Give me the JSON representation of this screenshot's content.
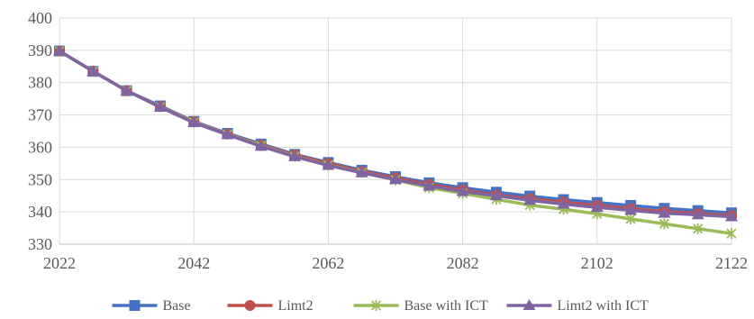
{
  "chart_data": {
    "type": "line",
    "title": "",
    "xlabel": "",
    "ylabel": "",
    "xlim": [
      2022,
      2122
    ],
    "ylim": [
      330,
      400
    ],
    "x_ticks": [
      "2022",
      "2042",
      "2062",
      "2082",
      "2102",
      "2122"
    ],
    "y_ticks": [
      "330",
      "340",
      "350",
      "360",
      "370",
      "380",
      "390",
      "400"
    ],
    "grid": "major, both axes",
    "legend_position": "bottom",
    "x": [
      2022,
      2027,
      2032,
      2037,
      2042,
      2047,
      2052,
      2057,
      2062,
      2067,
      2072,
      2077,
      2082,
      2087,
      2092,
      2097,
      2102,
      2107,
      2112,
      2117,
      2122
    ],
    "series": [
      {
        "name": "Base",
        "color": "#4472C4",
        "marker": "square",
        "values": [
          389.8,
          383.5,
          377.5,
          372.8,
          368.0,
          364.3,
          361.0,
          357.8,
          355.3,
          352.9,
          350.9,
          349.0,
          347.5,
          346.1,
          344.9,
          343.8,
          342.9,
          342.0,
          341.1,
          340.4,
          339.7
        ]
      },
      {
        "name": "Limt2",
        "color": "#C0504D",
        "marker": "circle",
        "values": [
          389.8,
          383.5,
          377.5,
          372.6,
          367.9,
          364.1,
          360.7,
          357.6,
          355.0,
          352.5,
          350.5,
          348.5,
          346.8,
          345.2,
          344.1,
          343.0,
          342.0,
          341.0,
          340.1,
          339.5,
          338.9
        ]
      },
      {
        "name": "Base with ICT",
        "color": "#9BBB59",
        "marker": "asterisk",
        "values": [
          389.8,
          383.5,
          377.5,
          372.5,
          367.8,
          364.0,
          360.5,
          357.2,
          354.5,
          352.2,
          349.9,
          347.5,
          345.7,
          343.9,
          342.1,
          340.8,
          339.4,
          337.8,
          336.3,
          334.8,
          333.3
        ]
      },
      {
        "name": "Limt2 with ICT",
        "color": "#8064A2",
        "marker": "triangle",
        "values": [
          389.8,
          383.5,
          377.5,
          372.4,
          367.6,
          363.9,
          360.3,
          357.1,
          354.4,
          352.1,
          350.0,
          348.0,
          346.3,
          345.0,
          343.6,
          342.4,
          341.4,
          340.5,
          339.6,
          339.1,
          338.5
        ]
      }
    ]
  }
}
